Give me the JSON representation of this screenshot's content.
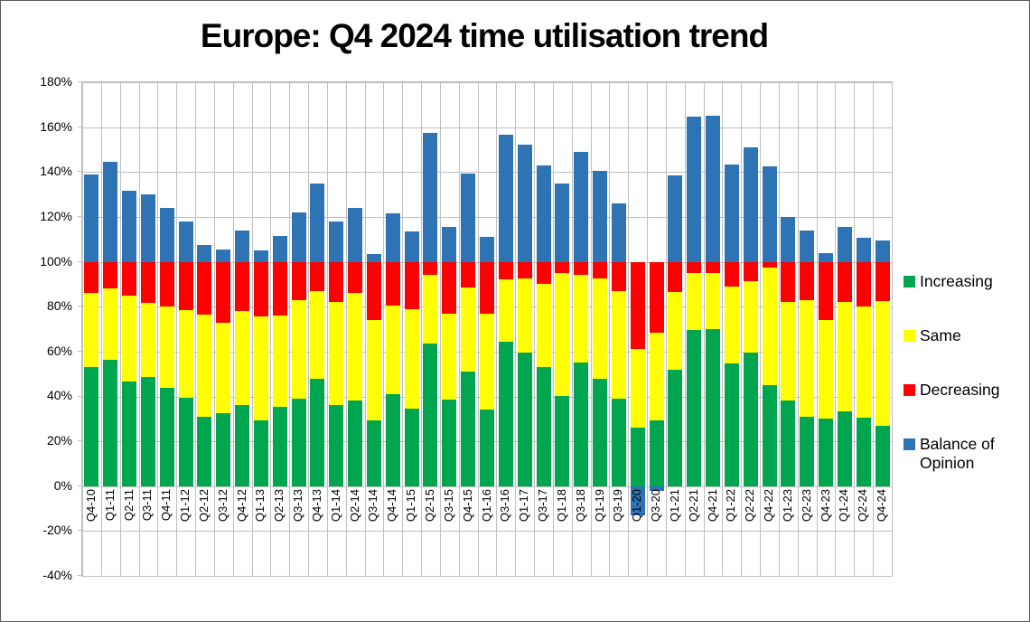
{
  "title": "Europe: Q4 2024 time utilisation trend",
  "chart_data": {
    "type": "bar",
    "stacked": true,
    "title": "Europe: Q4 2024 time utilisation trend",
    "xlabel": "",
    "ylabel": "",
    "ylim": [
      -40,
      180
    ],
    "y_tick_step": 20,
    "y_tick_labels": [
      "180%",
      "160%",
      "140%",
      "120%",
      "100%",
      "80%",
      "60%",
      "40%",
      "20%",
      "0%",
      "-20%",
      "-40%"
    ],
    "grid": true,
    "legend_position": "right",
    "categories": [
      "Q4-10",
      "Q1-11",
      "Q2-11",
      "Q3-11",
      "Q4-11",
      "Q1-12",
      "Q2-12",
      "Q3-12",
      "Q4-12",
      "Q1-13",
      "Q2-13",
      "Q3-13",
      "Q4-13",
      "Q1-14",
      "Q2-14",
      "Q3-14",
      "Q4-14",
      "Q1-15",
      "Q2-15",
      "Q3-15",
      "Q4-15",
      "Q1-16",
      "Q3-16",
      "Q1-17",
      "Q3-17",
      "Q1-18",
      "Q3-18",
      "Q1-19",
      "Q3-19",
      "Q1-20",
      "Q3-20",
      "Q1-21",
      "Q2-21",
      "Q4-21",
      "Q1-22",
      "Q2-22",
      "Q4-22",
      "Q1-23",
      "Q2-23",
      "Q4-23",
      "Q1-24",
      "Q2-24",
      "Q4-24"
    ],
    "series": [
      {
        "name": "Increasing",
        "color": "#00A64F",
        "values": [
          53,
          56.5,
          46.5,
          48.5,
          44,
          39.5,
          31,
          32.5,
          36,
          29.5,
          35.5,
          39,
          48,
          36,
          38,
          29.5,
          41,
          34.5,
          63.5,
          38.5,
          51,
          34,
          64.5,
          59.5,
          53,
          40,
          55,
          48,
          39,
          26,
          29.5,
          52,
          69.5,
          70,
          54.5,
          59.5,
          45,
          38,
          31,
          30,
          33.5,
          30.5,
          27
        ]
      },
      {
        "name": "Same",
        "color": "#FFFF00",
        "values": [
          33,
          31.5,
          38.5,
          33,
          36,
          39,
          45.5,
          40.5,
          42,
          46,
          40.5,
          44,
          39,
          46,
          48,
          44.5,
          39.5,
          44.5,
          30.5,
          38.5,
          37.5,
          43,
          27.5,
          33,
          37,
          55,
          39,
          44.5,
          48,
          35,
          39,
          34.5,
          25.5,
          25,
          34.5,
          32,
          52.5,
          44,
          52,
          44,
          48.5,
          49.5,
          55.5
        ]
      },
      {
        "name": "Decreasing",
        "color": "#FF0000",
        "values": [
          14,
          12,
          15,
          18.5,
          20,
          21.5,
          23.5,
          27,
          22,
          24.5,
          24,
          17,
          13,
          18,
          14,
          26,
          19.5,
          21,
          6,
          23,
          11.5,
          23,
          8,
          7.5,
          10,
          5,
          6,
          7.5,
          13,
          39,
          31.5,
          13.5,
          5,
          5,
          11,
          8.5,
          2.5,
          18,
          17,
          26,
          18,
          20,
          17.5
        ]
      },
      {
        "name": "Balance of Opinion",
        "color": "#2E74B5",
        "values": [
          39,
          44.5,
          31.5,
          30,
          24,
          18,
          7.5,
          5.5,
          14,
          5,
          11.5,
          22,
          35,
          18,
          24,
          3.5,
          21.5,
          13.5,
          57.5,
          15.5,
          39.5,
          11,
          56.5,
          52,
          43,
          35,
          49,
          40.5,
          26,
          -13,
          -2,
          38.5,
          64.5,
          65,
          43.5,
          51,
          42.5,
          20,
          14,
          4,
          15.5,
          10.5,
          9.5
        ]
      }
    ],
    "legend_labels": [
      "Increasing",
      "Same",
      "Decreasing",
      "Balance of Opinion"
    ]
  }
}
